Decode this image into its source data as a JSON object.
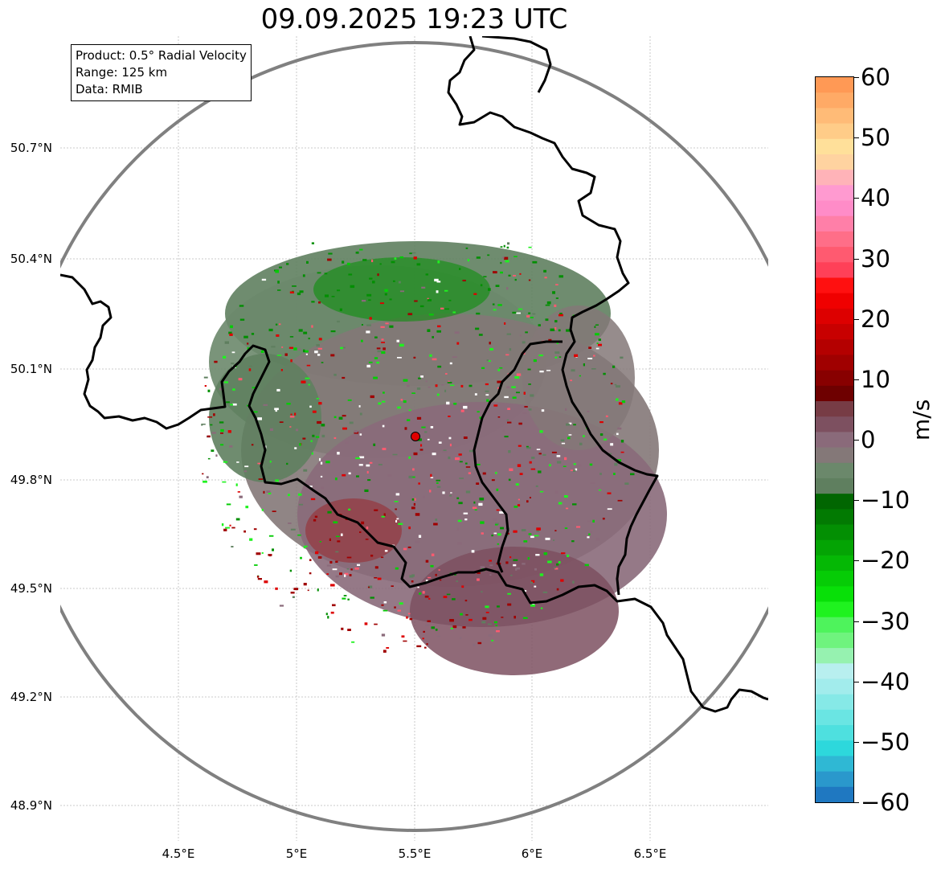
{
  "title": "09.09.2025 19:23 UTC",
  "info": {
    "product": "Product: 0.5° Radial Velocity",
    "range": "Range: 125 km",
    "data": "Data: RMIB"
  },
  "lat_labels": [
    "50.7°N",
    "50.4°N",
    "50.1°N",
    "49.8°N",
    "49.5°N",
    "49.2°N",
    "48.9°N"
  ],
  "lon_labels": [
    "4.5°E",
    "5°E",
    "5.5°E",
    "6°E",
    "6.5°E"
  ],
  "colorbar": {
    "unit": "m/s",
    "ticks": [
      "60",
      "50",
      "40",
      "30",
      "20",
      "10",
      "0",
      "−10",
      "−20",
      "−30",
      "−40",
      "−50",
      "−60"
    ],
    "range": [
      -60,
      60
    ],
    "colors": [
      "#1f78c1",
      "#2a98cc",
      "#2fb8d4",
      "#2dd8dc",
      "#4ee0df",
      "#6ae5e3",
      "#86e9e7",
      "#a2ecec",
      "#b8efef",
      "#96f2b0",
      "#6ff37e",
      "#4ef35c",
      "#1ff21f",
      "#08e008",
      "#06cc06",
      "#05b805",
      "#04a404",
      "#038f03",
      "#027a02",
      "#016601",
      "#5f7f5f",
      "#6b886b",
      "#847878",
      "#8a6a7a",
      "#7d5060",
      "#773c45",
      "#6e0000",
      "#880000",
      "#a00000",
      "#b40000",
      "#c80000",
      "#dd0000",
      "#f00000",
      "#ff1010",
      "#ff4058",
      "#ff5a70",
      "#ff6e88",
      "#ff7fa8",
      "#ff8cc8",
      "#ff9ad0",
      "#ffb3b8",
      "#ffd3a0",
      "#ffe09a",
      "#ffcc88",
      "#ffbb77",
      "#ffaa66",
      "#ff9955"
    ]
  },
  "radar_site": {
    "lon": 5.5,
    "lat": 49.914
  },
  "colors": {
    "range_ring": "#808080",
    "border": "#000000",
    "grid": "#bbbbbb",
    "site_marker": "#e00000"
  }
}
